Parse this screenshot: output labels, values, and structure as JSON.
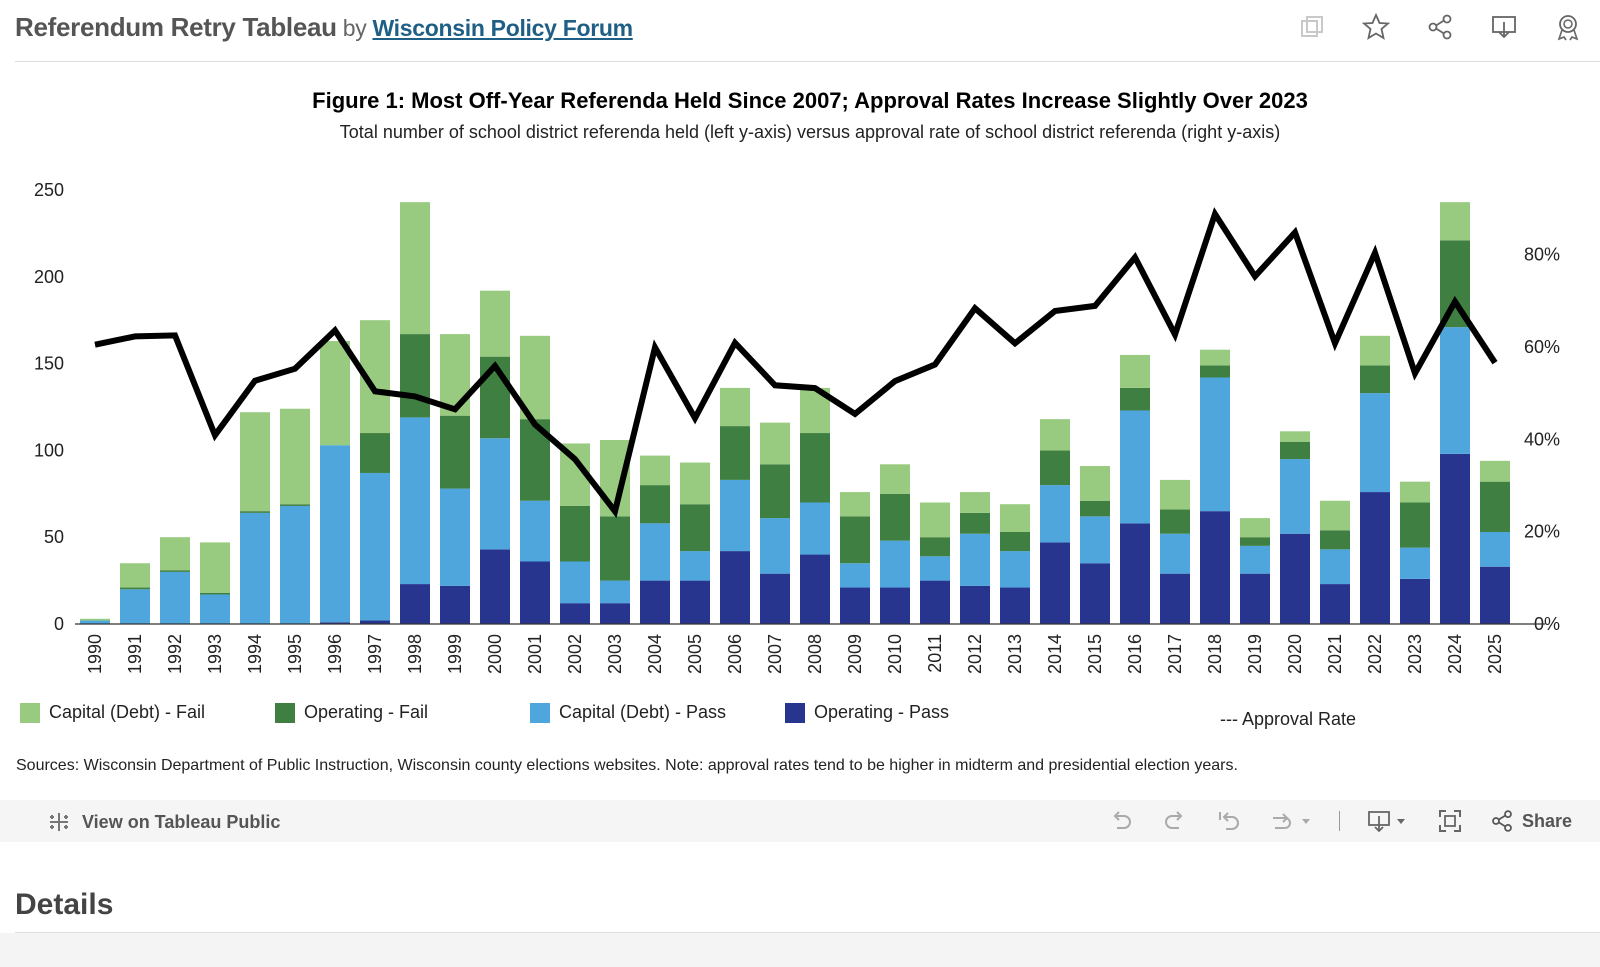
{
  "header": {
    "title": "Referendum Retry Tableau",
    "by": "by",
    "author": "Wisconsin Policy Forum",
    "icons": [
      "copy-icon",
      "star-icon",
      "share-icon",
      "download-icon",
      "badge-icon"
    ]
  },
  "chart_data": {
    "type": "bar",
    "title": "Figure 1: Most Off-Year Referenda Held Since 2007; Approval Rates Increase Slightly Over 2023",
    "subtitle": "Total number of school district referenda held (left y-axis) versus approval rate of school district referenda (right y-axis)",
    "categories": [
      "1990",
      "1991",
      "1992",
      "1993",
      "1994",
      "1995",
      "1996",
      "1997",
      "1998",
      "1999",
      "2000",
      "2001",
      "2002",
      "2003",
      "2004",
      "2005",
      "2006",
      "2007",
      "2008",
      "2009",
      "2010",
      "2011",
      "2012",
      "2013",
      "2014",
      "2015",
      "2016",
      "2017",
      "2018",
      "2019",
      "2020",
      "2021",
      "2022",
      "2023",
      "2024",
      "2025"
    ],
    "stacked": true,
    "series": [
      {
        "name": "Operating - Pass",
        "color": "#27358f",
        "values": [
          0,
          0,
          0,
          0,
          0,
          0,
          1,
          2,
          23,
          22,
          43,
          36,
          12,
          12,
          25,
          25,
          42,
          29,
          40,
          21,
          21,
          25,
          22,
          21,
          47,
          35,
          58,
          29,
          65,
          29,
          52,
          23,
          76,
          26,
          98,
          33
        ]
      },
      {
        "name": "Capital (Debt) - Pass",
        "color": "#4ea6dc",
        "values": [
          2,
          20,
          30,
          17,
          64,
          68,
          102,
          85,
          96,
          56,
          64,
          35,
          24,
          13,
          33,
          17,
          41,
          32,
          30,
          14,
          27,
          14,
          30,
          21,
          33,
          27,
          65,
          23,
          77,
          16,
          43,
          20,
          57,
          18,
          73,
          20
        ]
      },
      {
        "name": "Operating - Fail",
        "color": "#3f7f42",
        "values": [
          0,
          1,
          1,
          1,
          1,
          1,
          0,
          23,
          48,
          42,
          47,
          47,
          32,
          37,
          22,
          27,
          31,
          31,
          40,
          27,
          27,
          11,
          12,
          11,
          20,
          9,
          13,
          14,
          7,
          5,
          10,
          11,
          16,
          26,
          50,
          29
        ]
      },
      {
        "name": "Capital (Debt) - Fail",
        "color": "#98cb80",
        "values": [
          1,
          14,
          19,
          29,
          57,
          55,
          60,
          65,
          76,
          47,
          38,
          48,
          36,
          44,
          17,
          24,
          22,
          24,
          26,
          14,
          17,
          20,
          12,
          16,
          18,
          20,
          19,
          17,
          9,
          11,
          6,
          17,
          17,
          12,
          22,
          12
        ]
      }
    ],
    "line": {
      "name": "Approval Rate",
      "color": "#000000",
      "values": [
        60.5,
        62.3,
        62.5,
        40.9,
        52.7,
        55.3,
        63.6,
        50.4,
        49.3,
        46.5,
        55.9,
        43.2,
        35.7,
        24.4,
        59.9,
        44.6,
        60.9,
        51.7,
        51.1,
        45.5,
        52.6,
        56.2,
        68.4,
        60.8,
        67.8,
        68.9,
        79.4,
        62.7,
        88.8,
        75.3,
        84.8,
        60.8,
        80.4,
        54.3,
        69.8,
        56.6
      ]
    },
    "ylim": [
      0,
      250
    ],
    "yticks": [
      0,
      50,
      100,
      150,
      200,
      250
    ],
    "y2lim": [
      0,
      94
    ],
    "y2ticks": [
      0,
      20,
      40,
      60,
      80
    ],
    "y2tick_labels": [
      "0%",
      "20%",
      "40%",
      "60%",
      "80%"
    ],
    "legend": [
      {
        "label": "Capital (Debt) - Fail",
        "color": "#98cb80"
      },
      {
        "label": "Operating - Fail",
        "color": "#3f7f42"
      },
      {
        "label": "Capital (Debt) - Pass",
        "color": "#4ea6dc"
      },
      {
        "label": "Operating - Pass",
        "color": "#27358f"
      },
      {
        "label": "--- Approval Rate",
        "color": "#000000"
      }
    ],
    "legend_position": "bottom"
  },
  "sources": "Sources: Wisconsin Department of Public Instruction, Wisconsin county elections websites. Note: approval rates tend to be higher in midterm and presidential election years.",
  "toolbar": {
    "view_label": "View on Tableau Public",
    "share_label": "Share"
  },
  "details_heading": "Details"
}
